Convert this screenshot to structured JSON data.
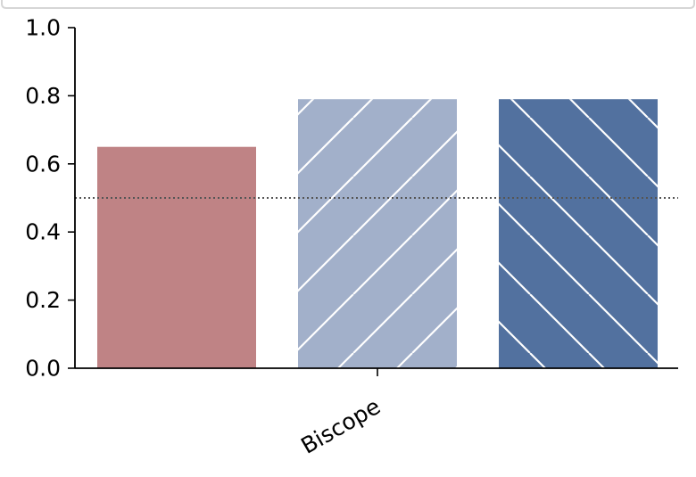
{
  "chart_data": {
    "type": "bar",
    "categories": [
      "Biscope"
    ],
    "series": [
      {
        "values": [
          0.65
        ],
        "color": "#bf8385",
        "hatch": "none"
      },
      {
        "values": [
          0.79
        ],
        "color": "#a2b0ca",
        "hatch": "forward-diagonal"
      },
      {
        "values": [
          0.79
        ],
        "color": "#52719f",
        "hatch": "backward-diagonal"
      }
    ],
    "reference_line": {
      "y": 0.5,
      "style": "dotted",
      "color": "#555555"
    },
    "ylim": [
      0,
      1.0
    ],
    "yticks": [
      "0.0",
      "0.2",
      "0.4",
      "0.6",
      "0.8",
      "1.0"
    ],
    "grid": false,
    "legend": "top-left, clipped above view"
  }
}
